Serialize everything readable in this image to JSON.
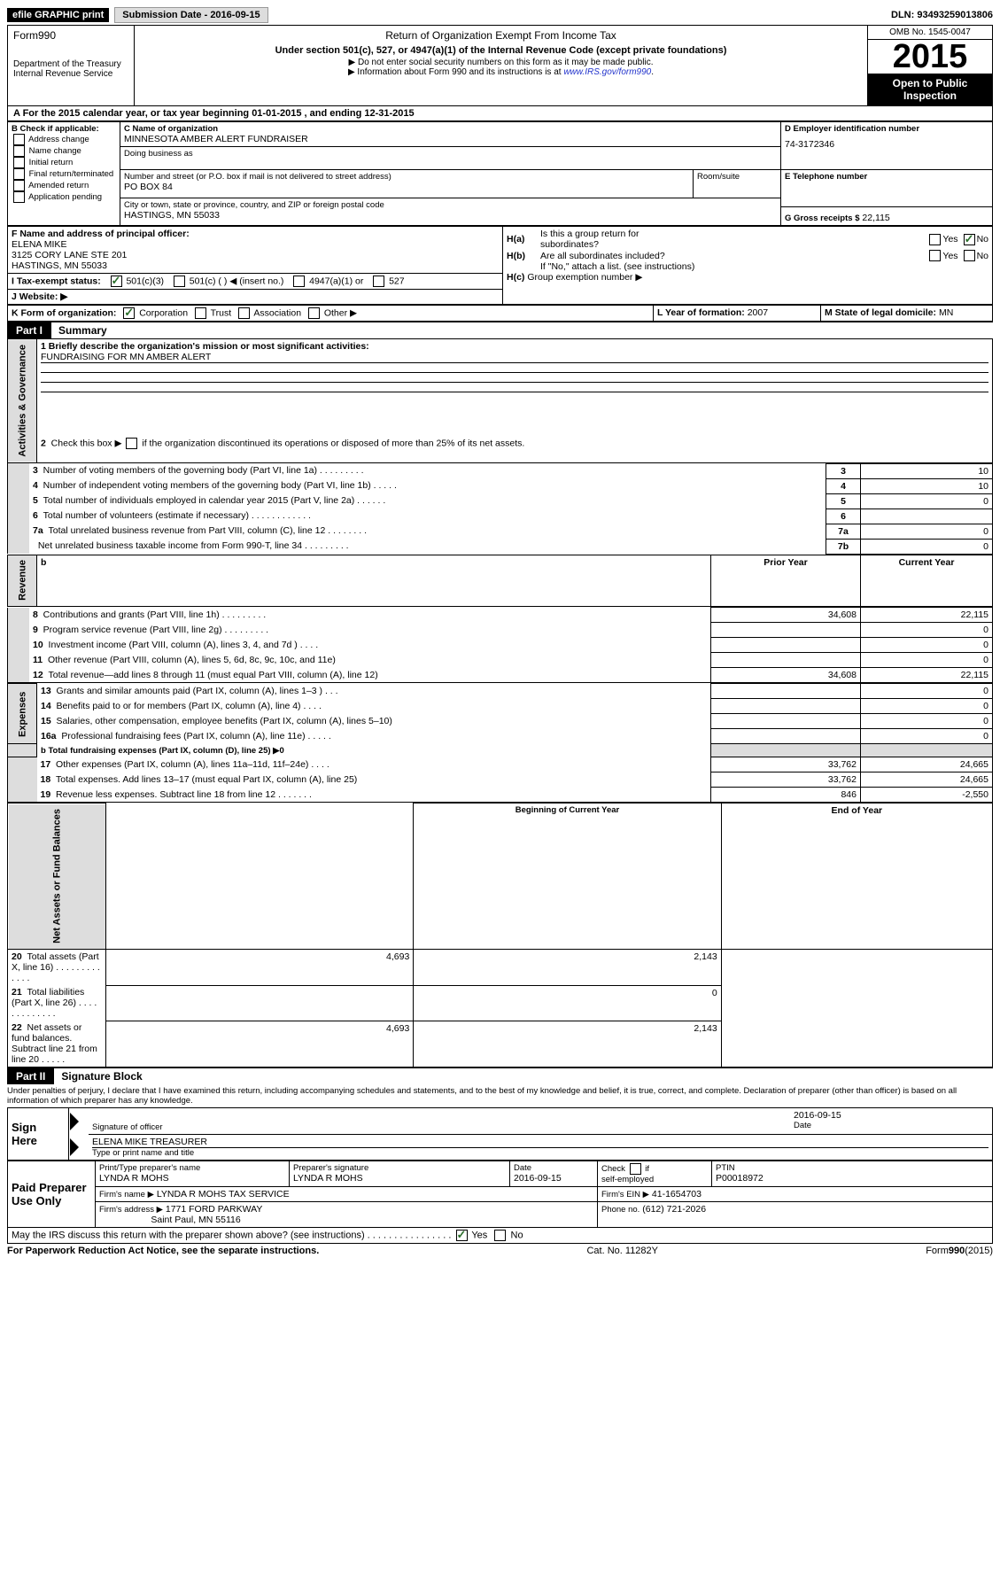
{
  "top": {
    "efile": "efile GRAPHIC print",
    "submission_label": "Submission Date - 2016-09-15",
    "dln_label": "DLN: 93493259013806"
  },
  "header_left": {
    "form": "Form990",
    "dept1": "Department of the Treasury",
    "dept2": "Internal Revenue Service"
  },
  "header_mid": {
    "line1": "Return of Organization Exempt From Income Tax",
    "line2": "Under section 501(c), 527, or 4947(a)(1) of the Internal Revenue Code (except private foundations)",
    "bullet1": "Do not enter social security numbers on this form as it may be made public.",
    "bullet2a": "Information about Form 990 and its instructions is at ",
    "bullet2_link": "www.IRS.gov/form990",
    "bullet2b": "."
  },
  "header_right": {
    "omb": "OMB No. 1545-0047",
    "year": "2015",
    "inspection": "Open to Public Inspection"
  },
  "lineA": "A  For the 2015 calendar year, or tax year beginning 01-01-2015   , and ending 12-31-2015",
  "sectionB": {
    "heading": "B Check if applicable:",
    "items": [
      "Address change",
      "Name change",
      "Initial return",
      "Final return/terminated",
      "Amended return",
      "Application pending"
    ]
  },
  "sectionC": {
    "name_label": "C Name of organization",
    "org_name": "MINNESOTA AMBER ALERT FUNDRAISER",
    "dba_label": "Doing business as",
    "street_label": "Number and street (or P.O. box if mail is not delivered to street address)",
    "street": "PO BOX 84",
    "room_label": "Room/suite",
    "city_label": "City or town, state or province, country, and ZIP or foreign postal code",
    "city": "HASTINGS, MN  55033"
  },
  "sectionD": {
    "label": "D Employer identification number",
    "value": "74-3172346"
  },
  "sectionE": {
    "label": "E Telephone number"
  },
  "sectionG": {
    "label": "G Gross receipts $",
    "value": "22,115"
  },
  "sectionF": {
    "label": "F  Name and address of principal officer:",
    "name": "ELENA MIKE",
    "addr1": "3125 CORY LANE STE 201",
    "addr2": "HASTINGS, MN  55033"
  },
  "sectionH": {
    "ha_label": "H(a)  Is this a group return for subordinates?",
    "yes": "Yes",
    "no": "No",
    "hb_label": "H(b)  Are all subordinates included?",
    "hb_note": "If \"No,\" attach a list. (see instructions)",
    "hc_label": "H(c)  Group exemption number ▶"
  },
  "lineI": {
    "label": "I    Tax-exempt status:",
    "opt1": "501(c)(3)",
    "opt2": "501(c) (   ) ◀ (insert no.)",
    "opt3": "4947(a)(1) or",
    "opt4": "527"
  },
  "lineJ": "J    Website: ▶",
  "lineK": {
    "label": "K Form of organization:",
    "opts": [
      "Corporation",
      "Trust",
      "Association",
      "Other ▶"
    ]
  },
  "lineL": {
    "label": "L Year of formation:",
    "value": "2007"
  },
  "lineM": {
    "label": "M State of legal domicile:",
    "value": "MN"
  },
  "partI": {
    "part": "Part I",
    "title": "Summary",
    "l1a": "1  Briefly describe the organization's mission or most significant activities:",
    "l1b": "FUNDRAISING FOR MN AMBER ALERT",
    "l2": "2   Check this box ▶       if the organization discontinued its operations or disposed of more than 25% of its net assets.",
    "rows_top": [
      {
        "n": "3",
        "t": "Number of voting members of the governing body (Part VI, line 1a)   .   .   .   .   .   .   .   .   .",
        "k": "3",
        "v": "10"
      },
      {
        "n": "4",
        "t": "Number of independent voting members of the governing body (Part VI, line 1b)    .   .   .   .   .",
        "k": "4",
        "v": "10"
      },
      {
        "n": "5",
        "t": "Total number of individuals employed in calendar year 2015 (Part V, line 2a)    .   .   .   .   .   .",
        "k": "5",
        "v": "0"
      },
      {
        "n": "6",
        "t": "Total number of volunteers (estimate if necessary)    .   .   .   .   .   .   .   .   .   .   .   .",
        "k": "6",
        "v": ""
      },
      {
        "n": "7a",
        "t": "Total unrelated business revenue from Part VIII, column (C), line 12    .   .   .   .   .   .   .   .",
        "k": "7a",
        "v": "0"
      },
      {
        "n": "",
        "t": "Net unrelated business taxable income from Form 990-T, line 34    .   .   .   .   .   .   .   .   .",
        "k": "7b",
        "v": "0"
      }
    ],
    "col_headers": {
      "b": "b",
      "prior": "Prior Year",
      "current": "Current Year"
    },
    "rev_rows": [
      {
        "n": "8",
        "t": "Contributions and grants (Part VIII, line 1h)    .   .   .   .   .   .   .   .   .",
        "p": "34,608",
        "c": "22,115"
      },
      {
        "n": "9",
        "t": "Program service revenue (Part VIII, line 2g)    .   .   .   .   .   .   .   .   .",
        "p": "",
        "c": "0"
      },
      {
        "n": "10",
        "t": "Investment income (Part VIII, column (A), lines 3, 4, and 7d )   .   .   .   .",
        "p": "",
        "c": "0"
      },
      {
        "n": "11",
        "t": "Other revenue (Part VIII, column (A), lines 5, 6d, 8c, 9c, 10c, and 11e)",
        "p": "",
        "c": "0"
      },
      {
        "n": "12",
        "t": "Total revenue—add lines 8 through 11 (must equal Part VIII, column (A), line 12)",
        "p": "34,608",
        "c": "22,115"
      }
    ],
    "exp_rows": [
      {
        "n": "13",
        "t": "Grants and similar amounts paid (Part IX, column (A), lines 1–3 )   .   .   .",
        "p": "",
        "c": "0"
      },
      {
        "n": "14",
        "t": "Benefits paid to or for members (Part IX, column (A), line 4)   .   .   .   .",
        "p": "",
        "c": "0"
      },
      {
        "n": "15",
        "t": "Salaries, other compensation, employee benefits (Part IX, column (A), lines 5–10)",
        "p": "",
        "c": "0"
      },
      {
        "n": "16a",
        "t": "Professional fundraising fees (Part IX, column (A), line 11e)    .   .   .   .   .",
        "p": "",
        "c": "0"
      }
    ],
    "l16b": "b   Total fundraising expenses (Part IX, column (D), line 25) ▶0",
    "exp_rows2": [
      {
        "n": "17",
        "t": "Other expenses (Part IX, column (A), lines 11a–11d, 11f–24e)    .   .   .   .",
        "p": "33,762",
        "c": "24,665"
      },
      {
        "n": "18",
        "t": "Total expenses. Add lines 13–17 (must equal Part IX, column (A), line 25)",
        "p": "33,762",
        "c": "24,665"
      },
      {
        "n": "19",
        "t": "Revenue less expenses. Subtract line 18 from line 12    .   .   .   .   .   .   .",
        "p": "846",
        "c": "-2,550"
      }
    ],
    "net_headers": {
      "beg": "Beginning of Current Year",
      "end": "End of Year"
    },
    "net_rows": [
      {
        "n": "20",
        "t": "Total assets (Part X, line 16)    .   .   .   .   .   .   .   .   .   .   .   .   .",
        "p": "4,693",
        "c": "2,143"
      },
      {
        "n": "21",
        "t": "Total liabilities (Part X, line 26)    .   .   .   .   .   .   .   .   .   .   .   .   .",
        "p": "",
        "c": "0"
      },
      {
        "n": "22",
        "t": "Net assets or fund balances. Subtract line 21 from line 20    .   .   .   .   .",
        "p": "4,693",
        "c": "2,143"
      }
    ],
    "tabs": {
      "ag": "Activities & Governance",
      "rev": "Revenue",
      "exp": "Expenses",
      "net": "Net Assets or Fund Balances"
    }
  },
  "partII": {
    "part": "Part II",
    "title": "Signature Block",
    "perjury": "Under penalties of perjury, I declare that I have examined this return, including accompanying schedules and statements, and to the best of my knowledge and belief, it is true, correct, and complete. Declaration of preparer (other than officer) is based on all information of which preparer has any knowledge.",
    "sign_here": "Sign Here",
    "sig_of": "Signature of officer",
    "date_lbl": "Date",
    "date_val": "2016-09-15",
    "printed_name": "ELENA MIKE TREASURER",
    "type_or_print": "Type or print name and title",
    "paid": "Paid Preparer Use Only",
    "prep_name_lbl": "Print/Type preparer's name",
    "prep_name": "LYNDA R MOHS",
    "prep_sig_lbl": "Preparer's signature",
    "prep_sig": "LYNDA R MOHS",
    "prep_date_lbl": "Date",
    "prep_date": "2016-09-15",
    "self_emp": "Check       if self-employed",
    "ptin_lbl": "PTIN",
    "ptin": "P00018972",
    "firm_name_lbl": "Firm's name    ▶",
    "firm_name": "LYNDA R MOHS TAX SERVICE",
    "firm_ein_lbl": "Firm's EIN ▶",
    "firm_ein": "41-1654703",
    "firm_addr_lbl": "Firm's address ▶",
    "firm_addr1": "1771 FORD PARKWAY",
    "firm_addr2": "Saint Paul, MN  55116",
    "phone_lbl": "Phone no.",
    "phone": "(612) 721-2026",
    "discuss": "May the IRS discuss this return with the preparer shown above? (see instructions)    .   .   .   .   .   .   .   .   .   .   .   .   .   .   .   .",
    "discuss_yes": "Yes",
    "discuss_no": "No"
  },
  "footer": {
    "left": "For Paperwork Reduction Act Notice, see the separate instructions.",
    "mid": "Cat. No. 11282Y",
    "right_a": "Form",
    "right_b": "990",
    "right_c": "(2015)"
  }
}
